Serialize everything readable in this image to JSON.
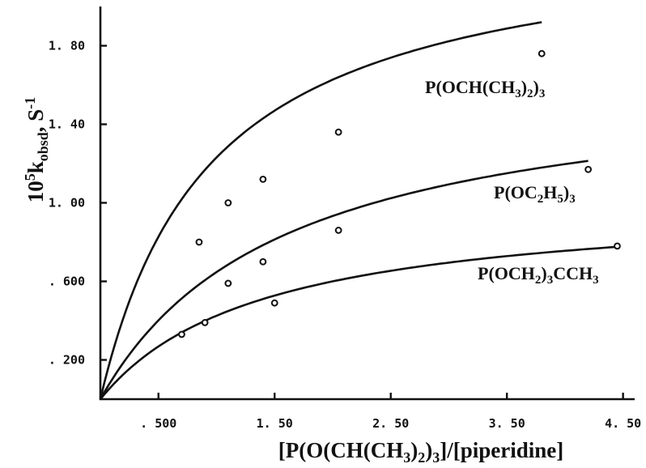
{
  "chart_data": {
    "type": "scatter",
    "title": "",
    "xlabel_parts": [
      "[P(O(CH(CH",
      "3",
      ")",
      "2",
      ")",
      "3",
      "]/[piperidine]"
    ],
    "ylabel_parts": [
      "10",
      "5",
      "k",
      "obsd",
      ", S",
      "-1"
    ],
    "xlim": [
      0,
      4.6
    ],
    "ylim": [
      0,
      2.0
    ],
    "x_ticks": [
      {
        "value": 0.5,
        "label": ". 500"
      },
      {
        "value": 1.5,
        "label": "1. 50"
      },
      {
        "value": 2.5,
        "label": "2. 50"
      },
      {
        "value": 3.5,
        "label": "3. 50"
      },
      {
        "value": 4.5,
        "label": "4. 50"
      }
    ],
    "y_ticks": [
      {
        "value": 0.2,
        "label": ". 200"
      },
      {
        "value": 0.6,
        "label": ". 600"
      },
      {
        "value": 1.0,
        "label": "1. 00"
      },
      {
        "value": 1.4,
        "label": "1. 40"
      },
      {
        "value": 1.8,
        "label": "1. 80"
      }
    ],
    "grid": false,
    "series": [
      {
        "name_parts": [
          "P(OCH(CH",
          "3",
          ")",
          "2",
          ")",
          "3"
        ],
        "points": [
          [
            0.85,
            0.8
          ],
          [
            1.1,
            1.0
          ],
          [
            1.4,
            1.12
          ],
          [
            2.05,
            1.36
          ],
          [
            3.8,
            1.76
          ]
        ],
        "curve_max": 2.4,
        "curve_k": 0.95
      },
      {
        "name_parts": [
          "P(OC",
          "2",
          "H",
          "5",
          ")",
          "3"
        ],
        "points": [
          [
            1.1,
            0.59
          ],
          [
            1.4,
            0.7
          ],
          [
            2.05,
            0.86
          ],
          [
            4.2,
            1.17
          ]
        ],
        "curve_max": 1.67,
        "curve_k": 1.58
      },
      {
        "name_parts": [
          "P(OCH",
          "2",
          ")",
          "3",
          "CCH",
          "3"
        ],
        "points": [
          [
            0.7,
            0.33
          ],
          [
            0.9,
            0.39
          ],
          [
            1.5,
            0.49
          ],
          [
            4.45,
            0.78
          ]
        ],
        "curve_max": 1.02,
        "curve_k": 1.4
      }
    ]
  }
}
